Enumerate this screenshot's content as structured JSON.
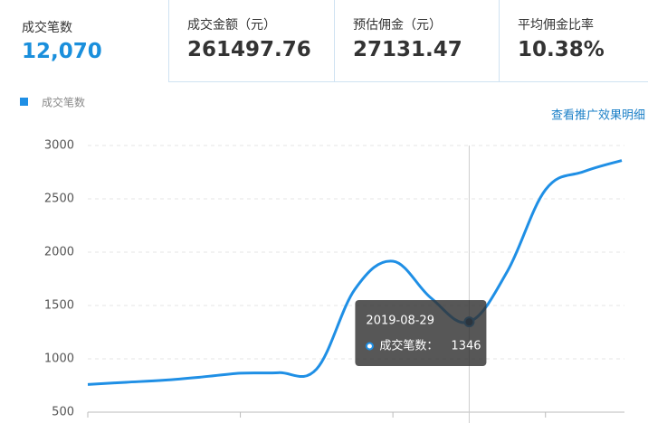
{
  "stats": [
    {
      "label": "成交笔数",
      "value": "12,070"
    },
    {
      "label": "成交金额（元）",
      "value": "261497.76"
    },
    {
      "label": "预估佣金（元）",
      "value": "27131.47"
    },
    {
      "label": "平均佣金比率",
      "value": "10.38%"
    }
  ],
  "link": "查看推广效果明细",
  "chart_data": {
    "type": "line",
    "categories": [
      null,
      null,
      null,
      null,
      null,
      null,
      null,
      null,
      null,
      null,
      "2019-08-29",
      null,
      null,
      null,
      null
    ],
    "series": [
      {
        "name": "成交笔数",
        "color": "#1f8fe5",
        "values": [
          760,
          780,
          800,
          830,
          865,
          870,
          905,
          1650,
          1915,
          1570,
          1346,
          1820,
          2585,
          2755,
          2860
        ]
      }
    ],
    "ylim": [
      500,
      3000
    ],
    "yticks": [
      500,
      1000,
      1500,
      2000,
      2500,
      3000
    ],
    "grid": true,
    "tooltip_label": "成交笔数："
  }
}
